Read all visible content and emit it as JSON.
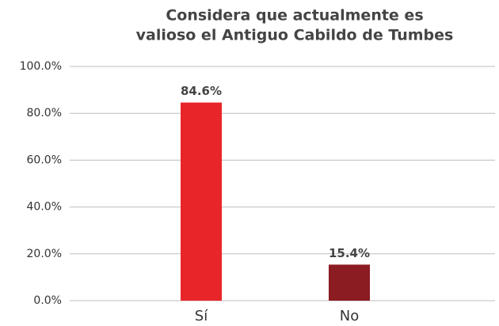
{
  "chart_data": {
    "type": "bar",
    "title": [
      "Considera que actualmente es",
      "valioso el Antiguo Cabildo de Tumbes"
    ],
    "categories": [
      "Sí",
      "No"
    ],
    "values": [
      84.6,
      15.4
    ],
    "value_labels": [
      "84.6%",
      "15.4%"
    ],
    "colors": [
      "#e8262a",
      "#8b1c22"
    ],
    "ylim": [
      0,
      100
    ],
    "yticks": [
      {
        "value": 0,
        "label": "0.0%"
      },
      {
        "value": 20,
        "label": "20.0%"
      },
      {
        "value": 40,
        "label": "40.0%"
      },
      {
        "value": 60,
        "label": "60.0%"
      },
      {
        "value": 80,
        "label": "80.0%"
      },
      {
        "value": 100,
        "label": "100.0%"
      }
    ],
    "grid": true
  }
}
